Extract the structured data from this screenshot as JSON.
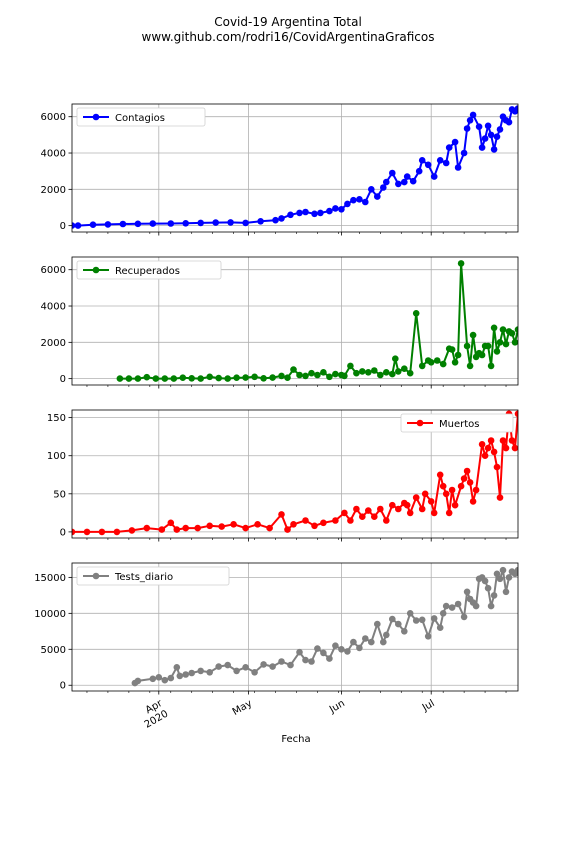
{
  "title": "Covid-19 Argentina Total",
  "subtitle": "www.github.com/rodri16/CovidArgentinaGraficos",
  "xlabel": "Fecha",
  "x_ticks": [
    {
      "date": "2020-04-01",
      "label": "Apr",
      "sublabel": "2020"
    },
    {
      "date": "2020-05-01",
      "label": "May",
      "sublabel": ""
    },
    {
      "date": "2020-06-01",
      "label": "Jun",
      "sublabel": ""
    },
    {
      "date": "2020-07-01",
      "label": "Jul",
      "sublabel": ""
    }
  ],
  "x_range": [
    "2020-03-03",
    "2020-07-30"
  ],
  "chart_data": [
    {
      "type": "line",
      "series": [
        {
          "name": "Contagios",
          "color": "#0000ff",
          "x": [
            "2020-03-03",
            "2020-03-05",
            "2020-03-10",
            "2020-03-15",
            "2020-03-20",
            "2020-03-25",
            "2020-03-30",
            "2020-04-05",
            "2020-04-10",
            "2020-04-15",
            "2020-04-20",
            "2020-04-25",
            "2020-04-30",
            "2020-05-05",
            "2020-05-10",
            "2020-05-12",
            "2020-05-15",
            "2020-05-18",
            "2020-05-20",
            "2020-05-23",
            "2020-05-25",
            "2020-05-28",
            "2020-05-30",
            "2020-06-01",
            "2020-06-03",
            "2020-06-05",
            "2020-06-07",
            "2020-06-09",
            "2020-06-11",
            "2020-06-13",
            "2020-06-15",
            "2020-06-16",
            "2020-06-18",
            "2020-06-20",
            "2020-06-22",
            "2020-06-23",
            "2020-06-25",
            "2020-06-27",
            "2020-06-28",
            "2020-06-30",
            "2020-07-02",
            "2020-07-04",
            "2020-07-06",
            "2020-07-07",
            "2020-07-09",
            "2020-07-10",
            "2020-07-12",
            "2020-07-13",
            "2020-07-14",
            "2020-07-15",
            "2020-07-17",
            "2020-07-18",
            "2020-07-19",
            "2020-07-20",
            "2020-07-21",
            "2020-07-22",
            "2020-07-23",
            "2020-07-24",
            "2020-07-25",
            "2020-07-26",
            "2020-07-27",
            "2020-07-28",
            "2020-07-29",
            "2020-07-30"
          ],
          "y": [
            10,
            0,
            50,
            70,
            90,
            100,
            110,
            120,
            130,
            150,
            170,
            180,
            150,
            240,
            300,
            400,
            600,
            700,
            750,
            650,
            700,
            800,
            950,
            900,
            1200,
            1400,
            1450,
            1300,
            2000,
            1600,
            2100,
            2400,
            2900,
            2300,
            2400,
            2700,
            2450,
            3000,
            3600,
            3350,
            2700,
            3600,
            3450,
            4300,
            4600,
            3200,
            4000,
            5350,
            5800,
            6100,
            5450,
            4300,
            4800,
            5500,
            5000,
            4200,
            4900,
            5300,
            6000,
            5800,
            5700,
            6400,
            6300,
            6450
          ]
        }
      ],
      "yticks": [
        0,
        2000,
        4000,
        6000
      ],
      "ylim": [
        -350,
        6700
      ],
      "legend": "top-left"
    },
    {
      "type": "line",
      "series": [
        {
          "name": "Recuperados",
          "color": "#008000",
          "x": [
            "2020-03-19",
            "2020-03-22",
            "2020-03-25",
            "2020-03-28",
            "2020-03-31",
            "2020-04-03",
            "2020-04-06",
            "2020-04-09",
            "2020-04-12",
            "2020-04-15",
            "2020-04-18",
            "2020-04-21",
            "2020-04-24",
            "2020-04-27",
            "2020-04-30",
            "2020-05-03",
            "2020-05-06",
            "2020-05-09",
            "2020-05-12",
            "2020-05-14",
            "2020-05-16",
            "2020-05-18",
            "2020-05-20",
            "2020-05-22",
            "2020-05-24",
            "2020-05-26",
            "2020-05-28",
            "2020-05-30",
            "2020-06-01",
            "2020-06-02",
            "2020-06-04",
            "2020-06-06",
            "2020-06-08",
            "2020-06-10",
            "2020-06-12",
            "2020-06-14",
            "2020-06-16",
            "2020-06-18",
            "2020-06-19",
            "2020-06-20",
            "2020-06-22",
            "2020-06-24",
            "2020-06-26",
            "2020-06-28",
            "2020-06-30",
            "2020-07-01",
            "2020-07-03",
            "2020-07-05",
            "2020-07-07",
            "2020-07-08",
            "2020-07-09",
            "2020-07-10",
            "2020-07-11",
            "2020-07-13",
            "2020-07-14",
            "2020-07-15",
            "2020-07-16",
            "2020-07-17",
            "2020-07-18",
            "2020-07-19",
            "2020-07-20",
            "2020-07-21",
            "2020-07-22",
            "2020-07-23",
            "2020-07-24",
            "2020-07-25",
            "2020-07-26",
            "2020-07-27",
            "2020-07-28",
            "2020-07-29",
            "2020-07-30"
          ],
          "y": [
            0,
            0,
            0,
            80,
            0,
            0,
            0,
            50,
            20,
            0,
            100,
            30,
            0,
            50,
            60,
            100,
            20,
            60,
            150,
            50,
            500,
            200,
            150,
            300,
            200,
            350,
            100,
            250,
            200,
            150,
            700,
            300,
            400,
            350,
            450,
            200,
            350,
            250,
            1100,
            400,
            550,
            300,
            3600,
            700,
            1000,
            900,
            1000,
            800,
            1650,
            1600,
            900,
            1300,
            6350,
            1800,
            700,
            2400,
            1200,
            1400,
            1300,
            1800,
            1800,
            700,
            2800,
            1500,
            2000,
            2700,
            1900,
            2600,
            2500,
            2000,
            2700
          ]
        }
      ],
      "yticks": [
        0,
        2000,
        4000,
        6000
      ],
      "ylim": [
        -350,
        6700
      ],
      "legend": "top-left"
    },
    {
      "type": "line",
      "series": [
        {
          "name": "Muertos",
          "color": "#ff0000",
          "x": [
            "2020-03-03",
            "2020-03-08",
            "2020-03-13",
            "2020-03-18",
            "2020-03-23",
            "2020-03-28",
            "2020-04-02",
            "2020-04-05",
            "2020-04-07",
            "2020-04-10",
            "2020-04-14",
            "2020-04-18",
            "2020-04-22",
            "2020-04-26",
            "2020-04-30",
            "2020-05-04",
            "2020-05-08",
            "2020-05-12",
            "2020-05-14",
            "2020-05-16",
            "2020-05-20",
            "2020-05-23",
            "2020-05-26",
            "2020-05-30",
            "2020-06-02",
            "2020-06-04",
            "2020-06-06",
            "2020-06-08",
            "2020-06-10",
            "2020-06-12",
            "2020-06-14",
            "2020-06-16",
            "2020-06-18",
            "2020-06-20",
            "2020-06-22",
            "2020-06-23",
            "2020-06-24",
            "2020-06-26",
            "2020-06-28",
            "2020-06-29",
            "2020-07-01",
            "2020-07-02",
            "2020-07-04",
            "2020-07-05",
            "2020-07-06",
            "2020-07-07",
            "2020-07-08",
            "2020-07-09",
            "2020-07-11",
            "2020-07-12",
            "2020-07-13",
            "2020-07-14",
            "2020-07-15",
            "2020-07-16",
            "2020-07-18",
            "2020-07-19",
            "2020-07-20",
            "2020-07-21",
            "2020-07-22",
            "2020-07-23",
            "2020-07-24",
            "2020-07-25",
            "2020-07-26",
            "2020-07-27",
            "2020-07-28",
            "2020-07-29",
            "2020-07-30"
          ],
          "y": [
            0,
            0,
            0,
            0,
            2,
            5,
            3,
            12,
            3,
            5,
            5,
            8,
            7,
            10,
            5,
            10,
            5,
            23,
            3,
            10,
            15,
            8,
            12,
            15,
            25,
            15,
            30,
            20,
            28,
            20,
            30,
            15,
            35,
            30,
            38,
            35,
            25,
            45,
            30,
            50,
            40,
            25,
            75,
            60,
            50,
            25,
            55,
            35,
            60,
            70,
            80,
            65,
            40,
            55,
            115,
            100,
            110,
            120,
            105,
            85,
            45,
            120,
            110,
            155,
            120,
            110,
            155
          ]
        }
      ],
      "yticks": [
        0,
        50,
        100,
        150
      ],
      "ylim": [
        -8,
        160
      ],
      "legend": "top-right"
    },
    {
      "type": "line",
      "series": [
        {
          "name": "Tests_diario",
          "color": "#808080",
          "x": [
            "2020-03-24",
            "2020-03-25",
            "2020-03-30",
            "2020-04-01",
            "2020-04-03",
            "2020-04-05",
            "2020-04-07",
            "2020-04-08",
            "2020-04-10",
            "2020-04-12",
            "2020-04-15",
            "2020-04-18",
            "2020-04-21",
            "2020-04-24",
            "2020-04-27",
            "2020-04-30",
            "2020-05-03",
            "2020-05-06",
            "2020-05-09",
            "2020-05-12",
            "2020-05-15",
            "2020-05-18",
            "2020-05-20",
            "2020-05-22",
            "2020-05-24",
            "2020-05-26",
            "2020-05-28",
            "2020-05-30",
            "2020-06-01",
            "2020-06-03",
            "2020-06-05",
            "2020-06-07",
            "2020-06-09",
            "2020-06-11",
            "2020-06-13",
            "2020-06-15",
            "2020-06-16",
            "2020-06-18",
            "2020-06-20",
            "2020-06-22",
            "2020-06-24",
            "2020-06-26",
            "2020-06-28",
            "2020-06-30",
            "2020-07-02",
            "2020-07-04",
            "2020-07-05",
            "2020-07-06",
            "2020-07-08",
            "2020-07-10",
            "2020-07-12",
            "2020-07-13",
            "2020-07-14",
            "2020-07-15",
            "2020-07-16",
            "2020-07-17",
            "2020-07-18",
            "2020-07-19",
            "2020-07-20",
            "2020-07-21",
            "2020-07-22",
            "2020-07-23",
            "2020-07-24",
            "2020-07-25",
            "2020-07-26",
            "2020-07-27",
            "2020-07-28",
            "2020-07-29",
            "2020-07-30"
          ],
          "y": [
            300,
            600,
            900,
            1100,
            700,
            1000,
            2500,
            1300,
            1500,
            1700,
            2000,
            1800,
            2600,
            2800,
            2000,
            2500,
            1800,
            2900,
            2600,
            3300,
            2800,
            4600,
            3500,
            3300,
            5100,
            4500,
            3700,
            5500,
            5000,
            4700,
            6000,
            5200,
            6500,
            6000,
            8500,
            6000,
            7000,
            9200,
            8500,
            7500,
            10000,
            9000,
            9100,
            6800,
            9300,
            8000,
            10000,
            11000,
            10800,
            11300,
            9500,
            13000,
            12000,
            11500,
            11000,
            14800,
            15000,
            14500,
            13500,
            11000,
            12500,
            15500,
            14800,
            16000,
            13000,
            15000,
            15800,
            15500,
            16000
          ]
        }
      ],
      "yticks": [
        0,
        5000,
        10000,
        15000
      ],
      "ylim": [
        -800,
        17000
      ],
      "legend": "top-left"
    }
  ]
}
